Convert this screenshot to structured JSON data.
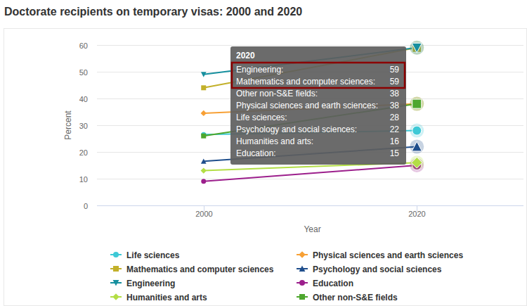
{
  "chart_data": {
    "type": "line",
    "title": "Doctorate recipients on temporary visas: 2000 and 2020",
    "x_label": "Year",
    "y_label": "Percent",
    "x": [
      2000,
      2020
    ],
    "xlim": [
      1990,
      2030
    ],
    "xticks": [
      2000,
      2020
    ],
    "ylim": [
      0,
      60
    ],
    "yticks": [
      0,
      10,
      20,
      30,
      40,
      50,
      60
    ],
    "grid": true,
    "legend": "bottom",
    "series": [
      {
        "name": "Life sciences",
        "color": "#3ec9d6",
        "marker": "circle",
        "values": [
          26.5,
          28
        ]
      },
      {
        "name": "Physical sciences and earth sciences",
        "color": "#f7a035",
        "marker": "diamond",
        "values": [
          34.5,
          38
        ]
      },
      {
        "name": "Mathematics and computer sciences",
        "color": "#c2b02a",
        "marker": "square",
        "values": [
          44,
          59
        ]
      },
      {
        "name": "Psychology and social sciences",
        "color": "#1f4e8c",
        "marker": "triangle",
        "values": [
          16.5,
          22
        ]
      },
      {
        "name": "Engineering",
        "color": "#17909f",
        "marker": "triangle-down",
        "values": [
          49,
          59
        ]
      },
      {
        "name": "Education",
        "color": "#9c1f8c",
        "marker": "circle",
        "values": [
          9,
          15
        ]
      },
      {
        "name": "Humanities and arts",
        "color": "#b3de45",
        "marker": "diamond",
        "values": [
          13,
          16
        ]
      },
      {
        "name": "Other non-S&E fields",
        "color": "#4ea72e",
        "marker": "square",
        "values": [
          26,
          38
        ]
      }
    ],
    "tooltip": {
      "title": "2020",
      "rows": [
        {
          "label": "Engineering:",
          "value": 59
        },
        {
          "label": "Mathematics and computer sciences:",
          "value": 59
        },
        {
          "label": "Other non-S&E fields:",
          "value": 38
        },
        {
          "label": "Physical sciences and earth sciences:",
          "value": 38
        },
        {
          "label": "Life sciences:",
          "value": 28
        },
        {
          "label": "Psychology and social sciences:",
          "value": 22
        },
        {
          "label": "Humanities and arts:",
          "value": 16
        },
        {
          "label": "Education:",
          "value": 15
        }
      ]
    }
  }
}
